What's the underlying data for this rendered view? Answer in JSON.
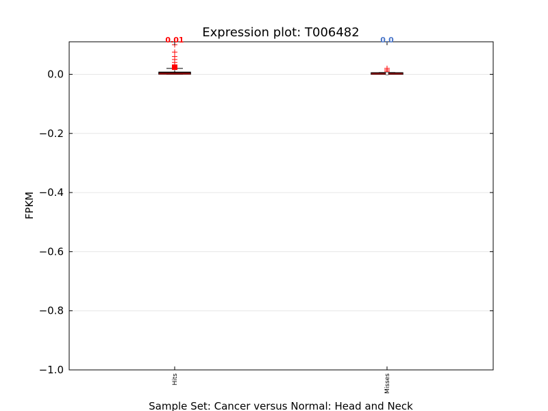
{
  "chart_data": {
    "type": "box",
    "title": "Expression plot: T006482",
    "xlabel": "Sample Set: Cancer versus Normal: Head and Neck",
    "ylabel": "FPKM",
    "ylim": [
      -1.0,
      0.11
    ],
    "yticks": [
      0.0,
      -0.2,
      -0.4,
      -0.6,
      -0.8,
      -1.0
    ],
    "ytick_labels": [
      "0.0",
      "−0.2",
      "−0.4",
      "−0.6",
      "−0.8",
      "−1.0"
    ],
    "grid": true,
    "categories": [
      "Hits",
      "Misses"
    ],
    "annotations": [
      {
        "text": "0.01",
        "color": "#ff0000"
      },
      {
        "text": "0.0",
        "color": "#4a76c9"
      }
    ],
    "boxes": [
      {
        "name": "Hits",
        "whisker_low": 0.0,
        "q1": 0.0008,
        "median": 0.002,
        "q3": 0.007,
        "whisker_high": 0.02,
        "mean": 0.024,
        "outliers": [
          0.025,
          0.03,
          0.04,
          0.05,
          0.06,
          0.075,
          0.1
        ]
      },
      {
        "name": "Misses",
        "whisker_low": 0.0,
        "q1": 0.0008,
        "median": 0.002,
        "q3": 0.005,
        "whisker_high": 0.006,
        "mean": 0.003,
        "outliers": [
          0.01,
          0.015,
          0.02
        ]
      }
    ]
  }
}
